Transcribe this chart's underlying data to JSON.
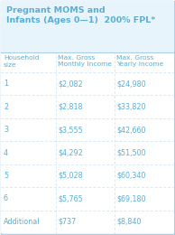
{
  "title_line1": "Pregnant MOMS and",
  "title_line2": "Infants (Ages 0—1)  200% FPL*",
  "col_headers": [
    "Household\nsize",
    "Max. Gross\nMonthly Income",
    "Max. Gross\nYearly Income"
  ],
  "rows": [
    [
      "1",
      "$2,082",
      "$24,980"
    ],
    [
      "2",
      "$2,818",
      "$33,820"
    ],
    [
      "3",
      "$3,555",
      "$42,660"
    ],
    [
      "4",
      "$4,292",
      "$51,500"
    ],
    [
      "5",
      "$5,028",
      "$60,340"
    ],
    [
      "6",
      "$5,765",
      "$69,180"
    ],
    [
      "Additional",
      "$737",
      "$8,840"
    ]
  ],
  "text_color": "#5baed4",
  "bg_color": "#ffffff",
  "border_color": "#aacfe6",
  "title_bg": "#e8f4fb",
  "row_bg": "#ffffff",
  "grid_color": "#c8dff0",
  "title_fontsize": 6.8,
  "header_fontsize": 5.4,
  "data_fontsize": 5.8,
  "figw": 1.94,
  "figh": 2.6,
  "dpi": 100
}
